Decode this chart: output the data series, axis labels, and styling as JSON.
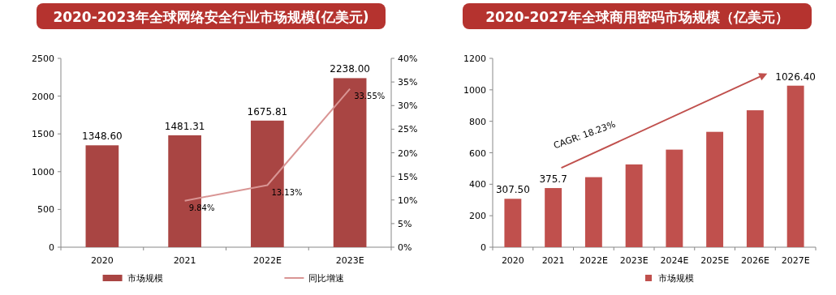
{
  "chart_data": [
    {
      "type": "bar",
      "title": "2020-2023年全球网络安全行业市场规模(亿美元)",
      "categories": [
        "2020",
        "2021",
        "2022E",
        "2023E"
      ],
      "ylim": [
        0,
        2500
      ],
      "yticks": [
        0,
        500,
        1000,
        1500,
        2000,
        2500
      ],
      "y2lim": [
        0,
        40
      ],
      "y2ticks": [
        {
          "value": 0,
          "label": "0%"
        },
        {
          "value": 5,
          "label": "5%"
        },
        {
          "value": 10,
          "label": "10%"
        },
        {
          "value": 15,
          "label": "15%"
        },
        {
          "value": 20,
          "label": "20%"
        },
        {
          "value": 25,
          "label": "25%"
        },
        {
          "value": 30,
          "label": "30%"
        },
        {
          "value": 35,
          "label": "35%"
        },
        {
          "value": 40,
          "label": "40%"
        }
      ],
      "legend": "bottom",
      "series": [
        {
          "name": "市场规模",
          "color": "#a94543",
          "values": [
            1348.6,
            1481.31,
            1675.81,
            2238.0
          ],
          "value_labels": [
            "1348.60",
            "1481.31",
            "1675.81",
            "2238.00"
          ]
        },
        {
          "name": "同比增速",
          "type": "line",
          "axis": "y2",
          "color": "#d99594",
          "values": [
            null,
            9.84,
            13.13,
            33.55
          ],
          "value_labels": [
            null,
            "9.84%",
            "13.13%",
            "33.55%"
          ]
        }
      ]
    },
    {
      "type": "bar",
      "title": "2020-2027年全球商用密码市场规模（亿美元）",
      "categories": [
        "2020",
        "2021",
        "2022E",
        "2023E",
        "2024E",
        "2025E",
        "2026E",
        "2027E"
      ],
      "ylim": [
        0,
        1200
      ],
      "yticks": [
        0,
        200,
        400,
        600,
        800,
        1000,
        1200
      ],
      "legend": "bottom",
      "annotations": [
        "CAGR: 18.23%"
      ],
      "series": [
        {
          "name": "市场规模",
          "color": "#c0504d",
          "values": [
            307.5,
            375.7,
            445,
            526,
            620,
            733,
            870,
            1026.4
          ],
          "value_labels": [
            "307.50",
            "375.7",
            null,
            null,
            null,
            null,
            null,
            "1026.40"
          ]
        }
      ]
    }
  ]
}
